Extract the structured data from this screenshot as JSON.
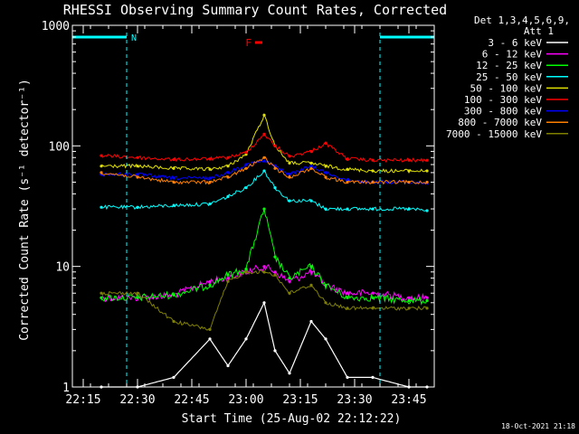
{
  "chart_data": {
    "type": "line",
    "title": "RHESSI Observing Summary Count Rates, Corrected",
    "xlabel": "Start Time (25-Aug-02 22:12:22)",
    "ylabel": "Corrected Count Rate (s⁻¹ detector⁻¹)",
    "yscale": "log",
    "ylim": [
      1,
      1000
    ],
    "xlim": [
      "22:12",
      "23:52"
    ],
    "x_ticks": [
      "22:15",
      "22:30",
      "22:45",
      "23:00",
      "23:15",
      "23:30",
      "23:45"
    ],
    "y_ticks": [
      "1",
      "10",
      "100",
      "1000"
    ],
    "legend_header": [
      "Det 1,3,4,5,6,9,",
      "Att 1"
    ],
    "legend_position": "right",
    "annotations": [
      {
        "label": "N",
        "color": "#00ffff",
        "x_start": "22:12",
        "x_end": "22:27"
      },
      {
        "label": "",
        "color": "#00ffff",
        "x_start": "23:37",
        "x_end": "23:52"
      },
      {
        "label": "F",
        "color": "#ff0000",
        "x": "23:03"
      }
    ],
    "vlines": [
      "22:12",
      "22:27",
      "23:37",
      "23:52"
    ],
    "timestamp": "18-Oct-2021 21:18",
    "x": [
      "22:20",
      "22:30",
      "22:40",
      "22:50",
      "22:55",
      "23:00",
      "23:05",
      "23:08",
      "23:12",
      "23:18",
      "23:22",
      "23:28",
      "23:35",
      "23:45",
      "23:50"
    ],
    "series": [
      {
        "name": "3 - 6 keV",
        "color": "#ffffff",
        "values": [
          1,
          1,
          1.2,
          2.5,
          1.5,
          2.5,
          5,
          2,
          1.3,
          3.5,
          2.5,
          1.2,
          1.2,
          1,
          1
        ]
      },
      {
        "name": "6 - 12 keV",
        "color": "#ff00ff",
        "values": [
          5.5,
          5.5,
          5.8,
          7.5,
          8,
          9,
          10,
          9,
          7.5,
          9,
          7,
          6,
          6,
          5.5,
          5.5
        ]
      },
      {
        "name": "12 - 25 keV",
        "color": "#00ff00",
        "values": [
          5.5,
          5.5,
          5.8,
          7,
          8.5,
          9.5,
          30,
          12,
          8,
          10,
          7,
          5.5,
          5.5,
          5.2,
          5.2
        ]
      },
      {
        "name": "25 - 50 keV",
        "color": "#00ffff",
        "values": [
          31,
          31,
          32,
          33,
          38,
          45,
          62,
          45,
          35,
          35,
          30,
          30,
          30,
          30,
          29
        ]
      },
      {
        "name": "50 - 100 keV",
        "color": "#e0e000",
        "values": [
          68,
          68,
          65,
          64,
          68,
          85,
          180,
          100,
          72,
          72,
          68,
          64,
          62,
          62,
          62
        ]
      },
      {
        "name": "100 - 300 keV",
        "color": "#ff0000",
        "values": [
          83,
          80,
          77,
          78,
          80,
          88,
          125,
          100,
          82,
          90,
          105,
          78,
          76,
          76,
          76
        ]
      },
      {
        "name": "300 - 800 keV",
        "color": "#0000ff",
        "values": [
          58,
          58,
          54,
          54,
          60,
          70,
          75,
          68,
          58,
          68,
          60,
          52,
          50,
          50,
          49
        ]
      },
      {
        "name": "800 - 7000 keV",
        "color": "#ff8000",
        "values": [
          60,
          55,
          50,
          50,
          55,
          65,
          80,
          65,
          55,
          65,
          55,
          50,
          50,
          50,
          50
        ]
      },
      {
        "name": "7000 - 15000 keV",
        "color": "#808000",
        "values": [
          6,
          6,
          3.5,
          3,
          7.5,
          9,
          9,
          8.5,
          6,
          7,
          5,
          4.5,
          4.5,
          4.5,
          4.5
        ]
      }
    ]
  }
}
